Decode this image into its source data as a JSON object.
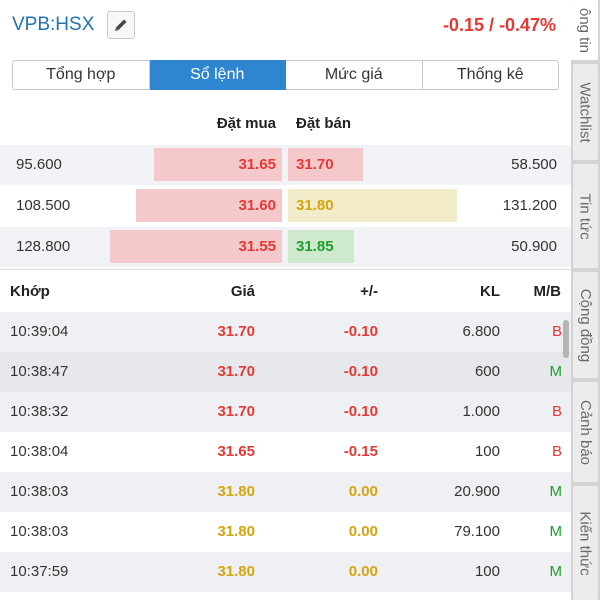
{
  "header": {
    "symbol": "VPB:HSX",
    "edit_icon": "pencil-icon",
    "change": "-0.15 / -0.47%",
    "change_color": "#e53935"
  },
  "tabs": [
    {
      "label": "Tổng hợp",
      "active": false
    },
    {
      "label": "Sổ lệnh",
      "active": true
    },
    {
      "label": "Mức giá",
      "active": false
    },
    {
      "label": "Thống kê",
      "active": false
    }
  ],
  "order_book": {
    "buy_header": "Đặt mua",
    "sell_header": "Đặt bán",
    "rows": [
      {
        "buy_qty": "95.600",
        "buy_price": "31.65",
        "sell_price": "31.70",
        "sell_qty": "58.500"
      },
      {
        "buy_qty": "108.500",
        "buy_price": "31.60",
        "sell_price": "31.80",
        "sell_qty": "131.200"
      },
      {
        "buy_qty": "128.800",
        "buy_price": "31.55",
        "sell_price": "31.85",
        "sell_qty": "50.900"
      }
    ]
  },
  "match": {
    "headers": {
      "time": "Khớp",
      "price": "Giá",
      "change": "+/-",
      "volume": "KL",
      "side": "M/B"
    },
    "rows": [
      {
        "time": "10:39:04",
        "price": "31.70",
        "change": "-0.10",
        "volume": "6.800",
        "side": "B"
      },
      {
        "time": "10:38:47",
        "price": "31.70",
        "change": "-0.10",
        "volume": "600",
        "side": "M"
      },
      {
        "time": "10:38:32",
        "price": "31.70",
        "change": "-0.10",
        "volume": "1.000",
        "side": "B"
      },
      {
        "time": "10:38:04",
        "price": "31.65",
        "change": "-0.15",
        "volume": "100",
        "side": "B"
      },
      {
        "time": "10:38:03",
        "price": "31.80",
        "change": "0.00",
        "volume": "20.900",
        "side": "M"
      },
      {
        "time": "10:38:03",
        "price": "31.80",
        "change": "0.00",
        "volume": "79.100",
        "side": "M"
      },
      {
        "time": "10:37:59",
        "price": "31.80",
        "change": "0.00",
        "volume": "100",
        "side": "M"
      }
    ]
  },
  "side_tabs": [
    {
      "label": "ông tin",
      "active": true
    },
    {
      "label": "Watchlist",
      "active": false
    },
    {
      "label": "Tin tức",
      "active": false
    },
    {
      "label": "Cộng đồng",
      "active": false
    },
    {
      "label": "Cảnh báo",
      "active": false
    },
    {
      "label": "Kiến thức",
      "active": false
    }
  ],
  "colors": {
    "accent": "#2e86d1",
    "down": "#e53935",
    "reference": "#d4a60c",
    "up": "#1e9e2a",
    "buy_bar": "#f5c9cc",
    "sell_bar_down": "#f5c9cc",
    "sell_bar_ref": "#f2eccb",
    "sell_bar_up": "#cfe9cf"
  }
}
